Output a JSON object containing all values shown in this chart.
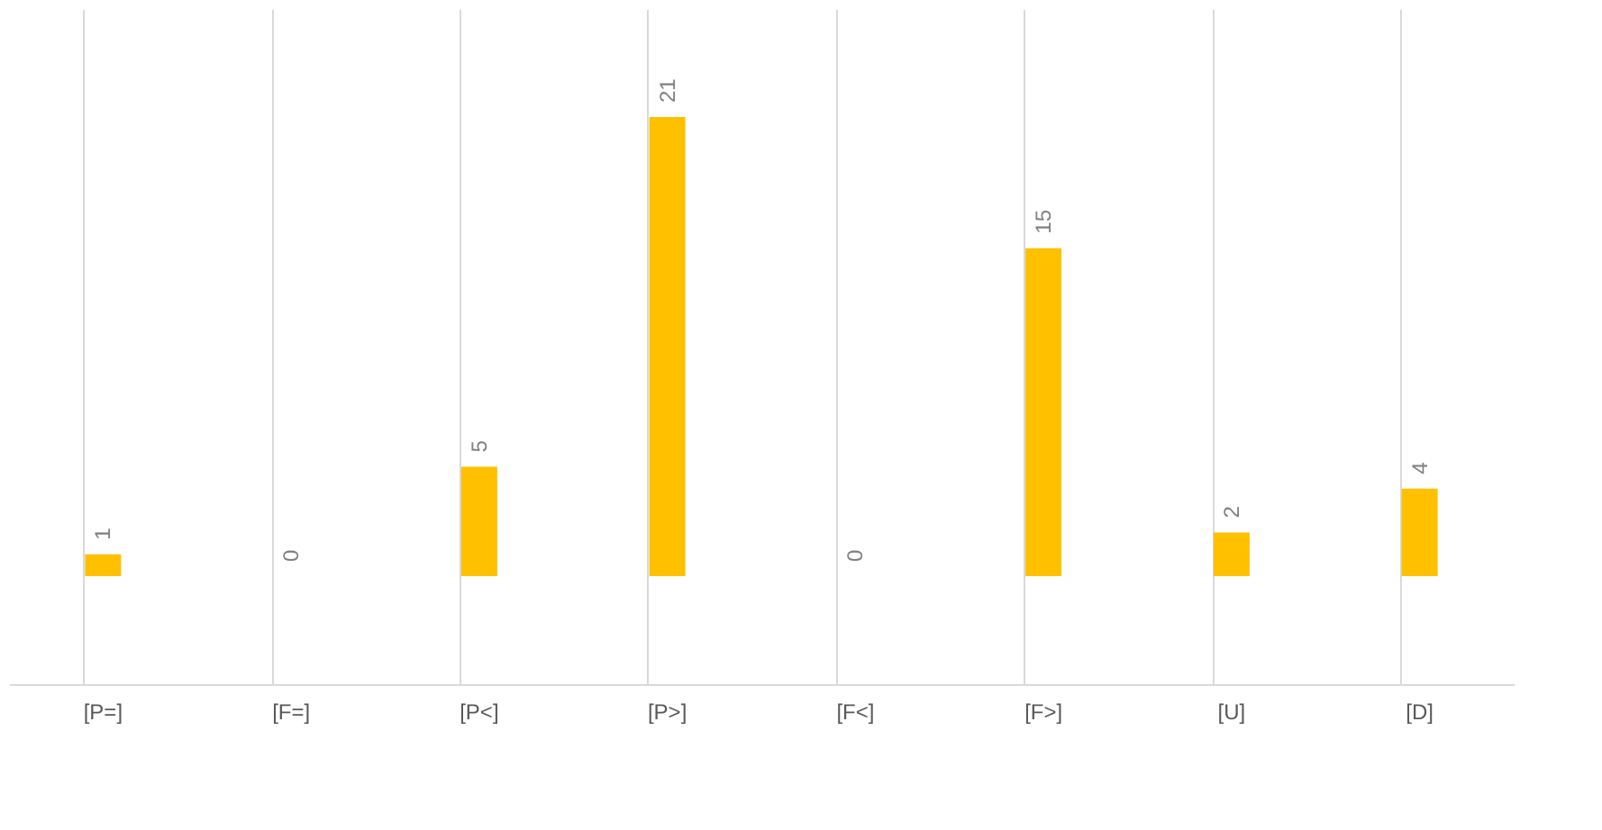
{
  "chart_data": {
    "type": "bar",
    "categories": [
      "[P=]",
      "[F=]",
      "[P<]",
      "[P>]",
      "[F<]",
      "[F>]",
      "[U]",
      "[D]"
    ],
    "values": [
      1,
      0,
      5,
      21,
      0,
      15,
      2,
      4
    ],
    "color": "#ffc000",
    "data_labels": true,
    "grid": "x",
    "tick_labels": "x"
  }
}
